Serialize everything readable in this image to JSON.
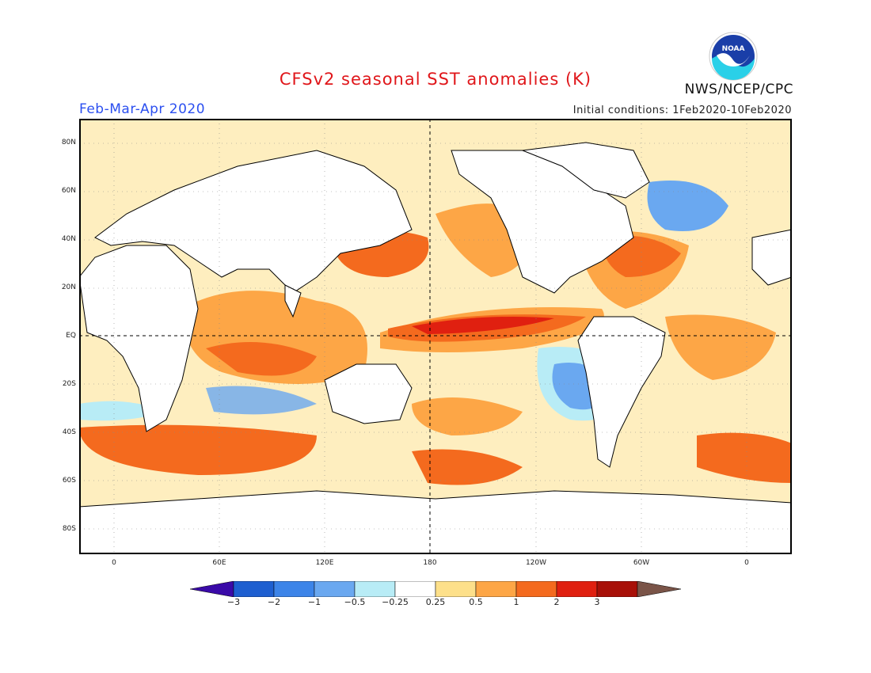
{
  "title": "CFSv2 seasonal SST anomalies (K)",
  "season": "Feb-Mar-Apr 2020",
  "initial_conditions": "Initial conditions: 1Feb2020-10Feb2020",
  "agency": "NWS/NCEP/CPC",
  "logo_text": "NOAA",
  "map": {
    "lat_labels": [
      "80N",
      "60N",
      "40N",
      "20N",
      "EQ",
      "20S",
      "40S",
      "60S",
      "80S"
    ],
    "lon_labels": [
      "0",
      "60E",
      "120E",
      "180",
      "120W",
      "60W",
      "0"
    ]
  },
  "colorbar": {
    "labels": [
      "-3",
      "-2",
      "-1",
      "-0.5",
      "-0.25",
      "0.25",
      "0.5",
      "1",
      "2",
      "3"
    ],
    "colors": [
      "#3a0aa8",
      "#1e5fd0",
      "#3c84e8",
      "#6aa8f0",
      "#b8ecf6",
      "#ffffff",
      "#fde08a",
      "#fda646",
      "#f46a1e",
      "#e02010",
      "#a81008",
      "#7a5448"
    ]
  },
  "colors": {
    "land": "#ffffff",
    "frame": "#000000",
    "title": "#e0161a",
    "season": "#2b4ff0"
  }
}
